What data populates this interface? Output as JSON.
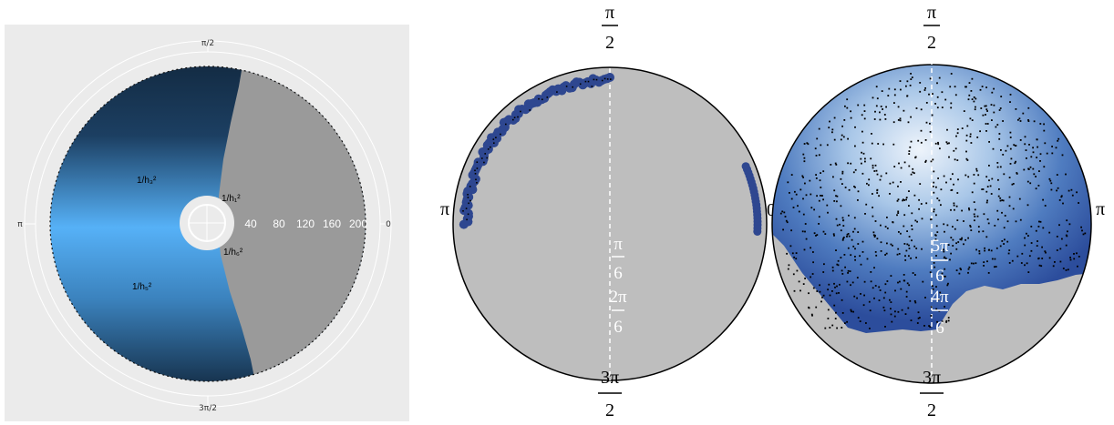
{
  "chart_data": [
    {
      "type": "polar-heatmap",
      "panel": "left",
      "angle_labels": {
        "top": "π/2",
        "left": "π",
        "right": "0",
        "bottom": "3π/2"
      },
      "radial_ticks": [
        "40",
        "80",
        "120",
        "160",
        "200"
      ],
      "radial_range": [
        0,
        200
      ],
      "region_labels": [
        "1/h₁²",
        "1/h₃²",
        "1/h₆²",
        "1/h₅²"
      ],
      "colors": {
        "panel_bg": "#ebebeb",
        "dark": "#132b43",
        "light": "#56b1f7",
        "masked": "#9a9a9a"
      }
    },
    {
      "type": "polar-scatter",
      "panel": "middle",
      "angle_labels": {
        "top": {
          "num": "π",
          "den": "2"
        },
        "left": "π",
        "right": "0",
        "bottom": {
          "num": "3π",
          "den": "2"
        }
      },
      "inner_labels": [
        {
          "num": "π",
          "den": "6"
        },
        {
          "num": "2π",
          "den": "6"
        }
      ],
      "colors": {
        "disk": "#bebebe",
        "points": "#2e4790",
        "dots": "#000000"
      }
    },
    {
      "type": "polar-density",
      "panel": "right",
      "angle_labels": {
        "top": {
          "num": "π",
          "den": "2"
        },
        "right": "π",
        "bottom": {
          "num": "3π",
          "den": "2"
        }
      },
      "inner_labels": [
        {
          "num": "5π",
          "den": "6"
        },
        {
          "num": "4π",
          "den": "6"
        }
      ],
      "colors": {
        "disk": "#bebebe",
        "dark": "#2c4d9c",
        "light": "#eef4fb",
        "dots": "#000000"
      }
    }
  ]
}
